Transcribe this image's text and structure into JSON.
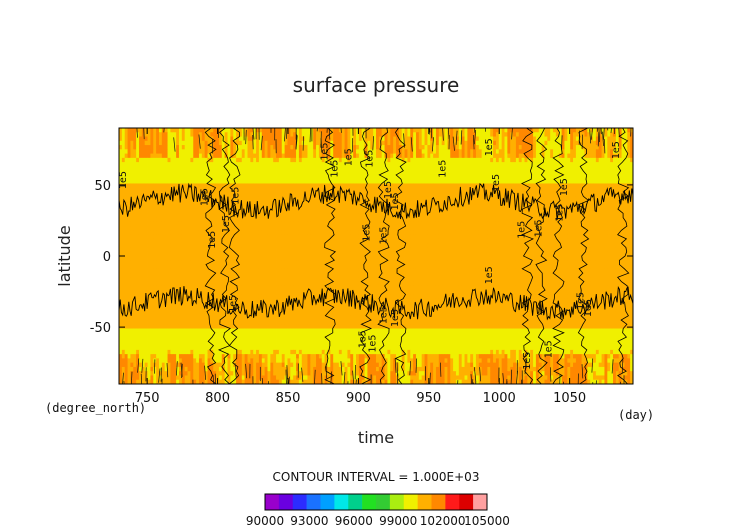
{
  "chart_data": {
    "type": "heatmap",
    "title": "surface pressure",
    "xlabel": "time",
    "ylabel": "latitude",
    "x_unit": "(day)",
    "y_unit": "(degree_north)",
    "xlim": [
      730,
      1095
    ],
    "ylim": [
      -90,
      90
    ],
    "x_ticks": [
      "750",
      "800",
      "850",
      "900",
      "950",
      "1000",
      "1050"
    ],
    "x_tick_values": [
      750,
      800,
      850,
      900,
      950,
      1000,
      1050
    ],
    "y_ticks": [
      "50",
      "0",
      "-50"
    ],
    "y_tick_values": [
      50,
      0,
      -50
    ],
    "contour_interval_text": "CONTOUR INTERVAL = 1.000E+03",
    "contour_label": "1e5",
    "contour_labels_positions": [
      [
        735,
        47
      ],
      [
        793,
        35
      ],
      [
        798,
        5
      ],
      [
        808,
        16
      ],
      [
        815,
        36
      ],
      [
        813,
        -40
      ],
      [
        878,
        67
      ],
      [
        885,
        55
      ],
      [
        895,
        63
      ],
      [
        910,
        62
      ],
      [
        923,
        40
      ],
      [
        928,
        32
      ],
      [
        908,
        10
      ],
      [
        920,
        8
      ],
      [
        920,
        -48
      ],
      [
        905,
        -65
      ],
      [
        912,
        -68
      ],
      [
        928,
        -50
      ],
      [
        962,
        55
      ],
      [
        995,
        70
      ],
      [
        1000,
        45
      ],
      [
        995,
        -20
      ],
      [
        1018,
        12
      ],
      [
        1030,
        13
      ],
      [
        1048,
        42
      ],
      [
        1045,
        24
      ],
      [
        1060,
        -38
      ],
      [
        1065,
        -43
      ],
      [
        1085,
        68
      ],
      [
        1022,
        -80
      ],
      [
        1037,
        -72
      ]
    ],
    "colorbar": {
      "labels": [
        "90000",
        "93000",
        "96000",
        "99000",
        "102000",
        "105000"
      ],
      "levels": [
        90000,
        91000,
        92000,
        93000,
        94000,
        95000,
        96000,
        97000,
        98000,
        99000,
        100000,
        101000,
        102000,
        103000,
        104000,
        105000
      ],
      "colors": [
        "#9900cc",
        "#6a00e0",
        "#2c2cff",
        "#1a72ff",
        "#00a0ff",
        "#00e8e8",
        "#00d08c",
        "#22e022",
        "#33cc33",
        "#aaee11",
        "#f0f000",
        "#ffb000",
        "#ff8800",
        "#ff1a1a",
        "#dd0000",
        "#ffa0a0"
      ]
    },
    "field": {
      "description_levels": [
        100000,
        101000,
        102000,
        103000
      ],
      "tropics_value": 101000,
      "midlat_value": 100000,
      "highlat_value": 102000
    },
    "grid": false,
    "legend": "none"
  }
}
